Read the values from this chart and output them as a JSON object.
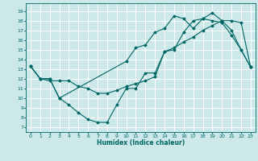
{
  "title": "",
  "xlabel": "Humidex (Indice chaleur)",
  "bg_color": "#cce8e8",
  "grid_color": "#ffffff",
  "line_color": "#006666",
  "xlim": [
    -0.5,
    23.5
  ],
  "ylim": [
    6.5,
    19.8
  ],
  "yticks": [
    7,
    8,
    9,
    10,
    11,
    12,
    13,
    14,
    15,
    16,
    17,
    18,
    19
  ],
  "xticks": [
    0,
    1,
    2,
    3,
    4,
    5,
    6,
    7,
    8,
    9,
    10,
    11,
    12,
    13,
    14,
    15,
    16,
    17,
    18,
    19,
    20,
    21,
    22,
    23
  ],
  "line1": {
    "x": [
      0,
      1,
      2,
      3,
      4,
      5,
      6,
      7,
      8,
      9,
      10,
      11,
      12,
      13,
      14,
      15,
      16,
      17,
      18,
      19,
      20,
      21,
      22,
      23
    ],
    "y": [
      13.3,
      12.0,
      12.0,
      10.0,
      9.3,
      8.5,
      7.8,
      7.5,
      7.5,
      9.3,
      11.0,
      11.0,
      12.6,
      12.6,
      14.8,
      15.0,
      16.8,
      18.0,
      18.2,
      18.0,
      17.8,
      16.5,
      15.0,
      13.2
    ]
  },
  "line2": {
    "x": [
      0,
      1,
      2,
      3,
      4,
      5,
      6,
      7,
      8,
      9,
      10,
      11,
      12,
      13,
      14,
      15,
      16,
      17,
      18,
      19,
      20,
      21,
      22,
      23
    ],
    "y": [
      13.3,
      12.0,
      11.8,
      11.8,
      11.8,
      11.2,
      11.0,
      10.5,
      10.5,
      10.8,
      11.2,
      11.5,
      11.8,
      12.2,
      14.8,
      15.2,
      15.8,
      16.3,
      17.0,
      17.5,
      18.0,
      18.0,
      17.8,
      13.2
    ]
  },
  "line3": {
    "x": [
      0,
      1,
      2,
      3,
      10,
      11,
      12,
      13,
      14,
      15,
      16,
      17,
      18,
      19,
      20,
      21,
      22,
      23
    ],
    "y": [
      13.3,
      12.0,
      12.0,
      10.0,
      13.8,
      15.2,
      15.5,
      16.8,
      17.2,
      18.5,
      18.2,
      17.2,
      18.2,
      18.8,
      18.0,
      17.0,
      15.0,
      13.2
    ]
  }
}
